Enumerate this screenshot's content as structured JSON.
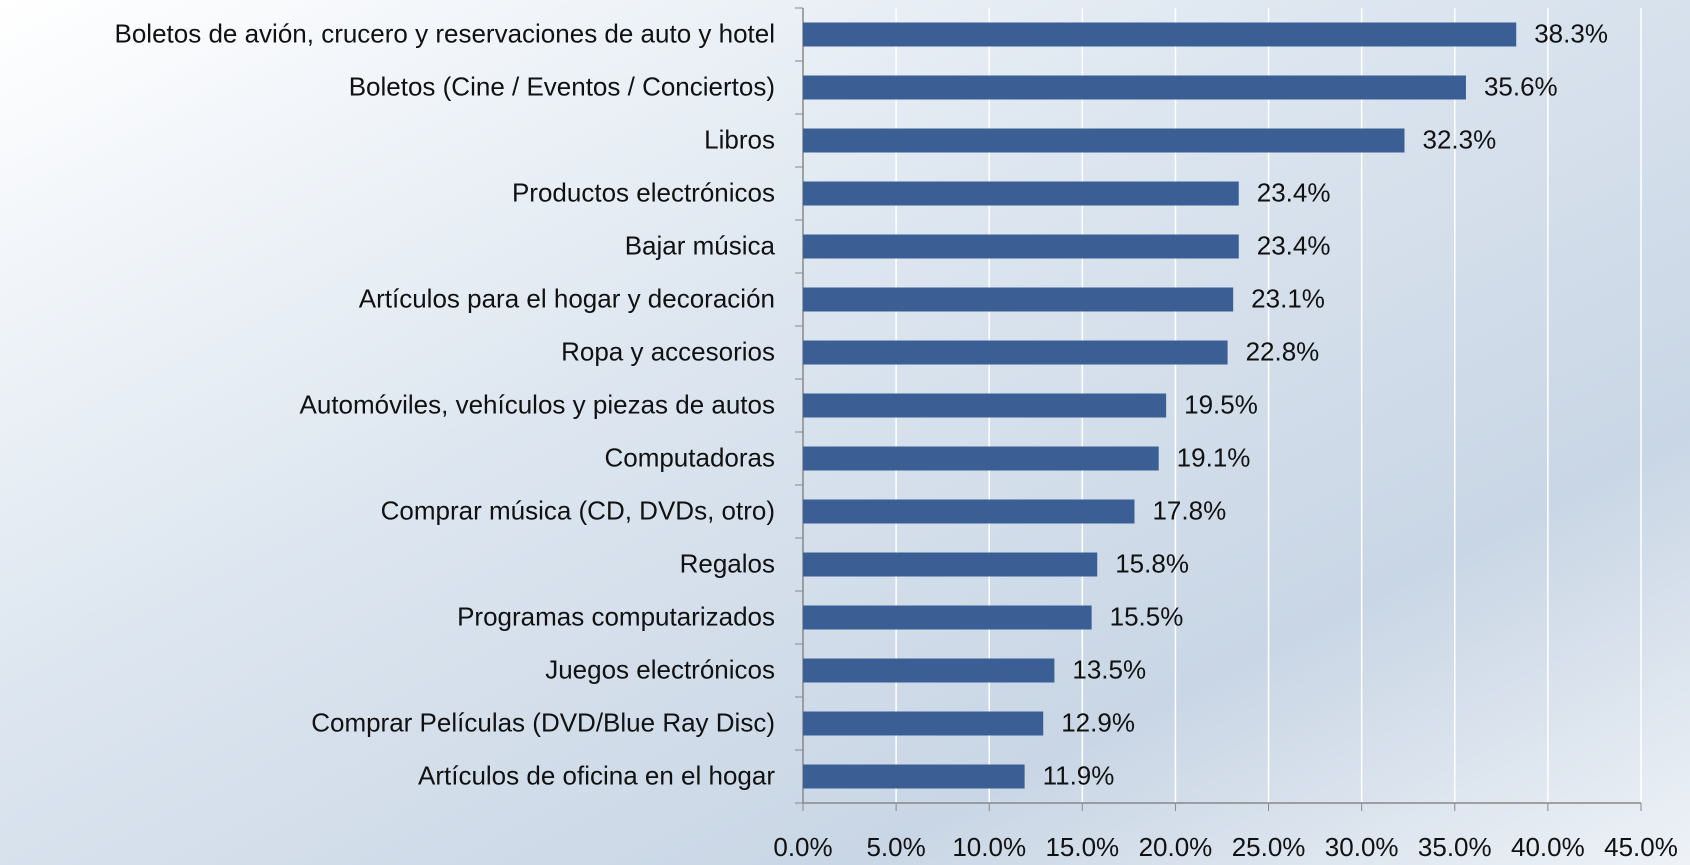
{
  "chart_data": {
    "type": "bar",
    "orientation": "horizontal",
    "color": "#3b5f94",
    "grid": true,
    "categories": [
      "Boletos de avión, crucero y reservaciones de auto y hotel",
      "Boletos (Cine / Eventos / Conciertos)",
      "Libros",
      "Productos electrónicos",
      "Bajar música",
      "Artículos para el hogar y decoración",
      "Ropa y accesorios",
      "Automóviles, vehículos y piezas de autos",
      "Computadoras",
      "Comprar música (CD,  DVDs, otro)",
      "Regalos",
      "Programas computarizados",
      "Juegos electrónicos",
      "Comprar Películas (DVD/Blue Ray Disc)",
      "Artículos de oficina en el hogar"
    ],
    "values": [
      38.3,
      35.6,
      32.3,
      23.4,
      23.4,
      23.1,
      22.8,
      19.5,
      19.1,
      17.8,
      15.8,
      15.5,
      13.5,
      12.9,
      11.9
    ],
    "value_labels": [
      "38.3%",
      "35.6%",
      "32.3%",
      "23.4%",
      "23.4%",
      "23.1%",
      "22.8%",
      "19.5%",
      "19.1%",
      "17.8%",
      "15.8%",
      "15.5%",
      "13.5%",
      "12.9%",
      "11.9%"
    ],
    "xlim": [
      0,
      45
    ],
    "xticks": [
      {
        "value": 0,
        "label": "0.0%"
      },
      {
        "value": 5,
        "label": "5.0%"
      },
      {
        "value": 10,
        "label": "10.0%"
      },
      {
        "value": 15,
        "label": "15.0%"
      },
      {
        "value": 20,
        "label": "20.0%"
      },
      {
        "value": 25,
        "label": "25.0%"
      },
      {
        "value": 30,
        "label": "30.0%"
      },
      {
        "value": 35,
        "label": "35.0%"
      },
      {
        "value": 40,
        "label": "40.0%"
      },
      {
        "value": 45,
        "label": "45.0%"
      }
    ]
  }
}
